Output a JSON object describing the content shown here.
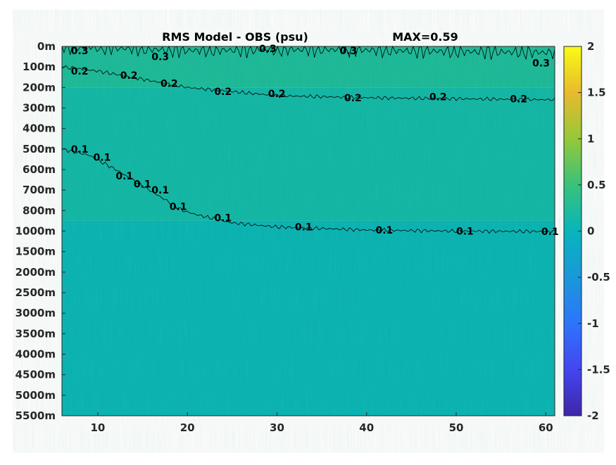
{
  "chart_data": {
    "type": "heatmap",
    "title": "RMS Model - OBS (psu)",
    "annotation": "MAX=0.59",
    "xlabel": "",
    "ylabel": "",
    "x_ticks": [
      10,
      20,
      30,
      40,
      50,
      60
    ],
    "xlim": [
      6,
      61
    ],
    "y_tick_labels": [
      "0m",
      "100m",
      "200m",
      "300m",
      "400m",
      "500m",
      "600m",
      "700m",
      "800m",
      "1000m",
      "1500m",
      "2000m",
      "2500m",
      "3000m",
      "3500m",
      "4000m",
      "4500m",
      "5000m",
      "5500m"
    ],
    "y_scale": "stretched depth (non-uniform levels)",
    "colormap": "parula",
    "clim": [
      -2,
      2
    ],
    "colorbar_ticks": [
      "2",
      "1.5",
      "1",
      "0.5",
      "0",
      "-0.5",
      "-1",
      "-1.5",
      "-2"
    ],
    "field_bands": [
      {
        "depth_range": [
          "0m",
          "200m"
        ],
        "value": 0.25
      },
      {
        "depth_range": [
          "200m",
          "900m"
        ],
        "value": 0.15
      },
      {
        "depth_range": [
          "900m",
          "5500m"
        ],
        "value": 0.05
      }
    ],
    "contours": [
      {
        "level": 0.3,
        "label": "0.3",
        "path": [
          [
            6,
            0
          ],
          [
            20,
            20
          ],
          [
            35,
            15
          ],
          [
            50,
            25
          ],
          [
            61,
            30
          ]
        ]
      },
      {
        "level": 0.2,
        "label": "0.2",
        "path": [
          [
            6,
            100
          ],
          [
            10,
            120
          ],
          [
            15,
            160
          ],
          [
            20,
            200
          ],
          [
            25,
            220
          ],
          [
            30,
            240
          ],
          [
            40,
            250
          ],
          [
            50,
            255
          ],
          [
            61,
            260
          ]
        ]
      },
      {
        "level": 0.1,
        "label": "0.1",
        "path": [
          [
            6,
            500
          ],
          [
            9,
            530
          ],
          [
            12,
            600
          ],
          [
            15,
            680
          ],
          [
            18,
            760
          ],
          [
            21,
            840
          ],
          [
            25,
            920
          ],
          [
            30,
            960
          ],
          [
            40,
            990
          ],
          [
            50,
            1000
          ],
          [
            61,
            1010
          ]
        ]
      }
    ],
    "contour_labels": [
      {
        "text": "0.3",
        "x": 7,
        "y": 20
      },
      {
        "text": "0.3",
        "x": 16,
        "y": 50
      },
      {
        "text": "0.3",
        "x": 28,
        "y": 10
      },
      {
        "text": "0.3",
        "x": 37,
        "y": 20
      },
      {
        "text": "0.3",
        "x": 58.5,
        "y": 80
      },
      {
        "text": "0.2",
        "x": 7,
        "y": 120
      },
      {
        "text": "0.2",
        "x": 12.5,
        "y": 140
      },
      {
        "text": "0.2",
        "x": 17,
        "y": 180
      },
      {
        "text": "0.2",
        "x": 23,
        "y": 220
      },
      {
        "text": "0.2",
        "x": 29,
        "y": 230
      },
      {
        "text": "0.2",
        "x": 37.5,
        "y": 250
      },
      {
        "text": "0.2",
        "x": 47,
        "y": 245
      },
      {
        "text": "0.2",
        "x": 56,
        "y": 255
      },
      {
        "text": "0.1",
        "x": 7,
        "y": 500
      },
      {
        "text": "0.1",
        "x": 9.5,
        "y": 540
      },
      {
        "text": "0.1",
        "x": 12,
        "y": 630
      },
      {
        "text": "0.1",
        "x": 14,
        "y": 670
      },
      {
        "text": "0.1",
        "x": 16,
        "y": 700
      },
      {
        "text": "0.1",
        "x": 18,
        "y": 780
      },
      {
        "text": "0.1",
        "x": 23,
        "y": 870
      },
      {
        "text": "0.1",
        "x": 32,
        "y": 960
      },
      {
        "text": "0.1",
        "x": 41,
        "y": 990
      },
      {
        "text": "0.1",
        "x": 50,
        "y": 1000
      },
      {
        "text": "0.1",
        "x": 59.5,
        "y": 1010
      }
    ],
    "grid": false,
    "legend": "colorbar-right"
  }
}
